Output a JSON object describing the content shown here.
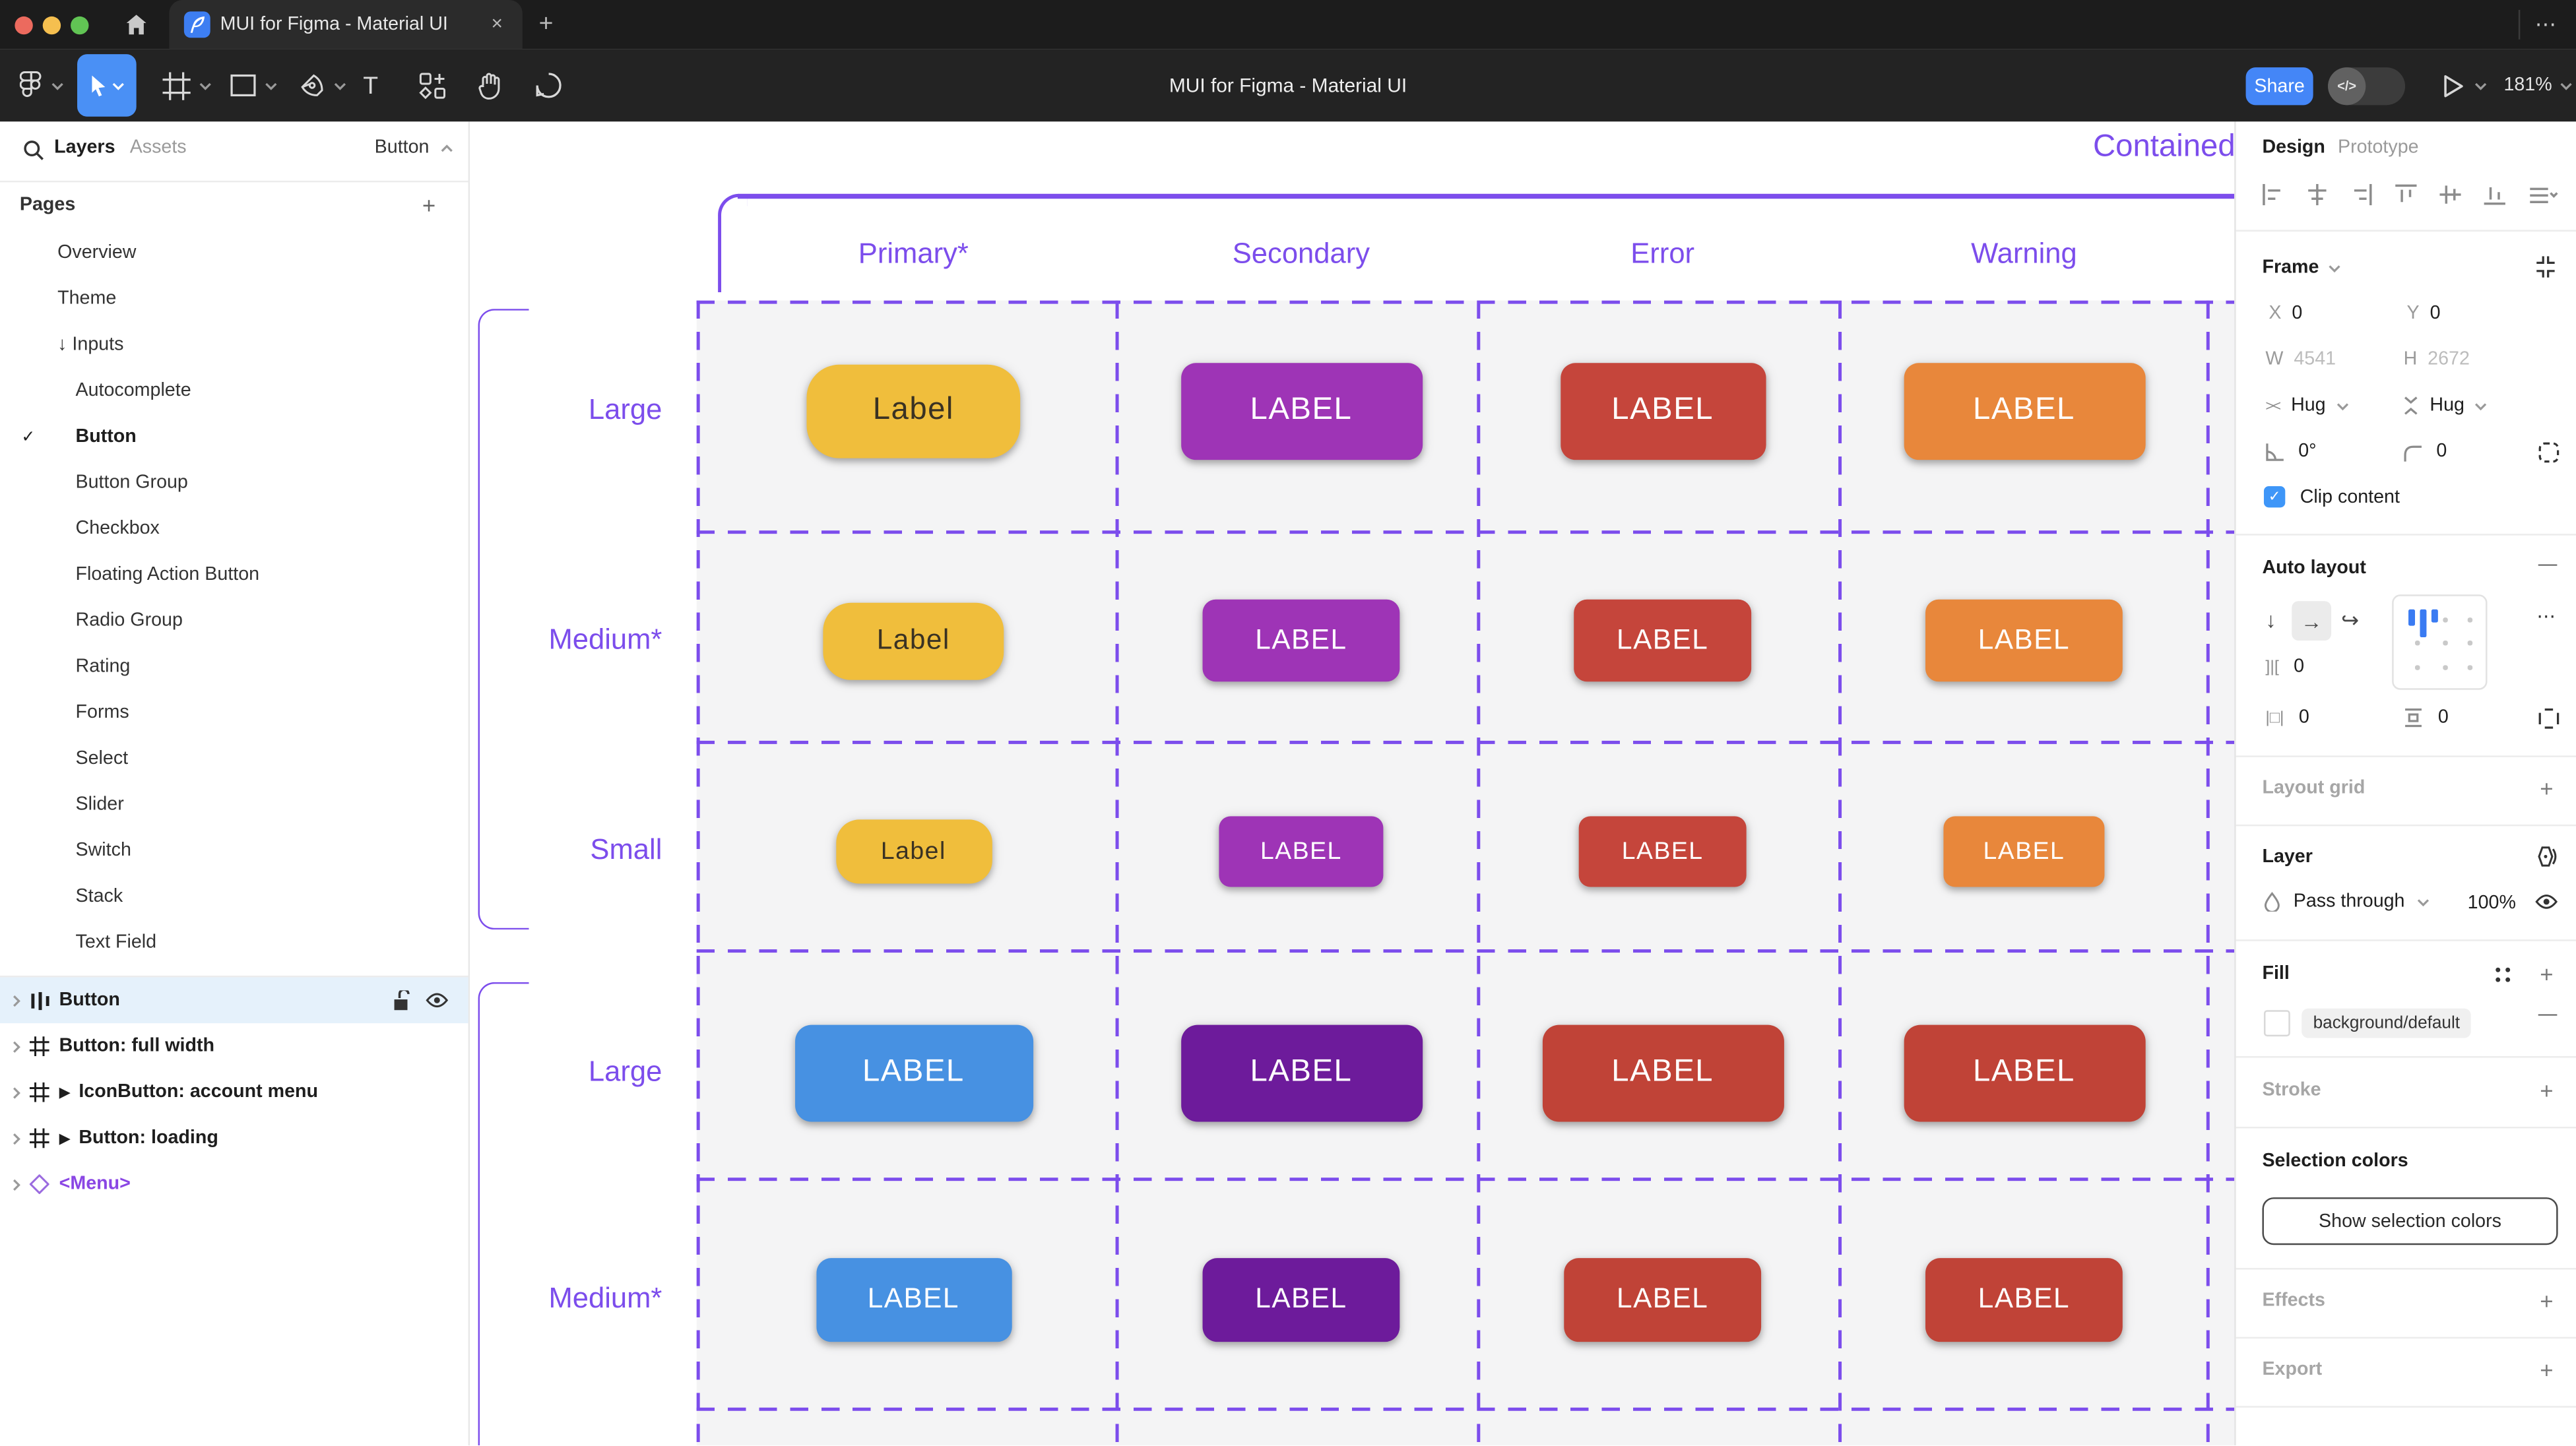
{
  "window": {
    "tab_title": "MUI for Figma - Material UI",
    "close_label": "×",
    "new_tab_label": "+",
    "more_label": "⋯"
  },
  "toolbar": {
    "title": "MUI for Figma - Material UI",
    "share_label": "Share",
    "dev_toggle_label": "</>",
    "text_tool_label": "T",
    "zoom_level": "181%",
    "accent": "#4A90F5"
  },
  "left_panel": {
    "tabs": [
      {
        "label": "Layers",
        "active": true
      },
      {
        "label": "Assets",
        "active": false
      }
    ],
    "filter_label": "Button",
    "pages_title": "Pages",
    "add_label": "+",
    "pages": [
      {
        "label": "Overview",
        "indent": 1
      },
      {
        "label": "Theme",
        "indent": 1
      },
      {
        "label": "Inputs",
        "indent": 1,
        "arrow": "↓"
      },
      {
        "label": "Autocomplete",
        "indent": 2
      },
      {
        "label": "Button",
        "indent": 2,
        "checked": true
      },
      {
        "label": "Button Group",
        "indent": 2
      },
      {
        "label": "Checkbox",
        "indent": 2
      },
      {
        "label": "Floating Action Button",
        "indent": 2
      },
      {
        "label": "Radio Group",
        "indent": 2
      },
      {
        "label": "Rating",
        "indent": 2
      },
      {
        "label": "Forms",
        "indent": 2
      },
      {
        "label": "Select",
        "indent": 2
      },
      {
        "label": "Slider",
        "indent": 2
      },
      {
        "label": "Switch",
        "indent": 2
      },
      {
        "label": "Stack",
        "indent": 2
      },
      {
        "label": "Text Field",
        "indent": 2
      }
    ],
    "layers": [
      {
        "label": "Button",
        "icon": "auto-layout",
        "selected": true
      },
      {
        "label": "Button: full width",
        "icon": "frame"
      },
      {
        "label": "IconButton: account menu",
        "icon": "frame",
        "component_arrow": true
      },
      {
        "label": "Button: loading",
        "icon": "frame",
        "component_arrow": true
      },
      {
        "label": "<Menu>",
        "icon": "component",
        "purple": true
      }
    ]
  },
  "canvas": {
    "frame_label": "Contained",
    "accent": "#7C4DEC",
    "columns": [
      "Primary*",
      "Secondary",
      "Error",
      "Warning"
    ],
    "rows": [
      {
        "label": "Large",
        "cells": [
          {
            "text": "Label",
            "bg": "#F0BE3C",
            "fg": "#3A3223",
            "w": 130,
            "h": 57,
            "r": 20,
            "fs": 19
          },
          {
            "text": "LABEL",
            "bg": "#9E34B6",
            "fg": "#FFFFFF",
            "w": 147,
            "h": 59,
            "r": 9,
            "fs": 19
          },
          {
            "text": "LABEL",
            "bg": "#C5453B",
            "fg": "#FFFFFF",
            "w": 125,
            "h": 59,
            "r": 9,
            "fs": 19
          },
          {
            "text": "LABEL",
            "bg": "#E8873B",
            "fg": "#FFFFFF",
            "w": 147,
            "h": 59,
            "r": 9,
            "fs": 19
          }
        ]
      },
      {
        "label": "Medium*",
        "cells": [
          {
            "text": "Label",
            "bg": "#F0BE3C",
            "fg": "#3A3223",
            "w": 110,
            "h": 47,
            "r": 17,
            "fs": 17
          },
          {
            "text": "LABEL",
            "bg": "#9E34B6",
            "fg": "#FFFFFF",
            "w": 120,
            "h": 50,
            "r": 8,
            "fs": 17
          },
          {
            "text": "LABEL",
            "bg": "#C5453B",
            "fg": "#FFFFFF",
            "w": 108,
            "h": 50,
            "r": 8,
            "fs": 17
          },
          {
            "text": "LABEL",
            "bg": "#E8873B",
            "fg": "#FFFFFF",
            "w": 120,
            "h": 50,
            "r": 8,
            "fs": 17
          }
        ]
      },
      {
        "label": "Small",
        "cells": [
          {
            "text": "Label",
            "bg": "#F0BE3C",
            "fg": "#3A3223",
            "w": 95,
            "h": 39,
            "r": 14,
            "fs": 15
          },
          {
            "text": "LABEL",
            "bg": "#9E34B6",
            "fg": "#FFFFFF",
            "w": 100,
            "h": 43,
            "r": 7,
            "fs": 15
          },
          {
            "text": "LABEL",
            "bg": "#C5453B",
            "fg": "#FFFFFF",
            "w": 102,
            "h": 43,
            "r": 7,
            "fs": 15
          },
          {
            "text": "LABEL",
            "bg": "#E8873B",
            "fg": "#FFFFFF",
            "w": 98,
            "h": 43,
            "r": 7,
            "fs": 15
          }
        ]
      },
      {
        "label": "Large",
        "cells": [
          {
            "text": "LABEL",
            "bg": "#4791E2",
            "fg": "#FFFFFF",
            "w": 145,
            "h": 59,
            "r": 10,
            "fs": 19
          },
          {
            "text": "LABEL",
            "bg": "#6D1B9B",
            "fg": "#FFFFFF",
            "w": 147,
            "h": 59,
            "r": 10,
            "fs": 19
          },
          {
            "text": "LABEL",
            "bg": "#C04337",
            "fg": "#FFFFFF",
            "w": 147,
            "h": 59,
            "r": 10,
            "fs": 19
          },
          {
            "text": "LABEL",
            "bg": "#C04337",
            "fg": "#FFFFFF",
            "w": 147,
            "h": 59,
            "r": 10,
            "fs": 19
          }
        ]
      },
      {
        "label": "Medium*",
        "cells": [
          {
            "text": "LABEL",
            "bg": "#4791E2",
            "fg": "#FFFFFF",
            "w": 119,
            "h": 51,
            "r": 9,
            "fs": 17
          },
          {
            "text": "LABEL",
            "bg": "#6D1B9B",
            "fg": "#FFFFFF",
            "w": 120,
            "h": 51,
            "r": 9,
            "fs": 17
          },
          {
            "text": "LABEL",
            "bg": "#C04337",
            "fg": "#FFFFFF",
            "w": 120,
            "h": 51,
            "r": 9,
            "fs": 17
          },
          {
            "text": "LABEL",
            "bg": "#C04337",
            "fg": "#FFFFFF",
            "w": 120,
            "h": 51,
            "r": 9,
            "fs": 17
          }
        ]
      }
    ]
  },
  "right_panel": {
    "tabs": [
      {
        "label": "Design",
        "active": true
      },
      {
        "label": "Prototype",
        "active": false
      }
    ],
    "frame": {
      "title": "Frame",
      "x_label": "X",
      "x_value": "0",
      "y_label": "Y",
      "y_value": "0",
      "w_label": "W",
      "w_value": "4541",
      "h_label": "H",
      "h_value": "2672",
      "hug_h": "Hug",
      "hug_v": "Hug",
      "angle_value": "0°",
      "radius_value": "0",
      "clip_label": "Clip content"
    },
    "auto_layout": {
      "title": "Auto layout",
      "gap_value": "0",
      "pad_h_value": "0",
      "pad_v_value": "0"
    },
    "layout_grid_title": "Layout grid",
    "layer": {
      "title": "Layer",
      "blend_mode": "Pass through",
      "opacity": "100%"
    },
    "fill": {
      "title": "Fill",
      "token": "background/default"
    },
    "stroke_title": "Stroke",
    "selection": {
      "title": "Selection colors",
      "button_label": "Show selection colors"
    },
    "effects_title": "Effects",
    "export_title": "Export",
    "plus": "+",
    "minus": "—",
    "more": "⋯"
  }
}
